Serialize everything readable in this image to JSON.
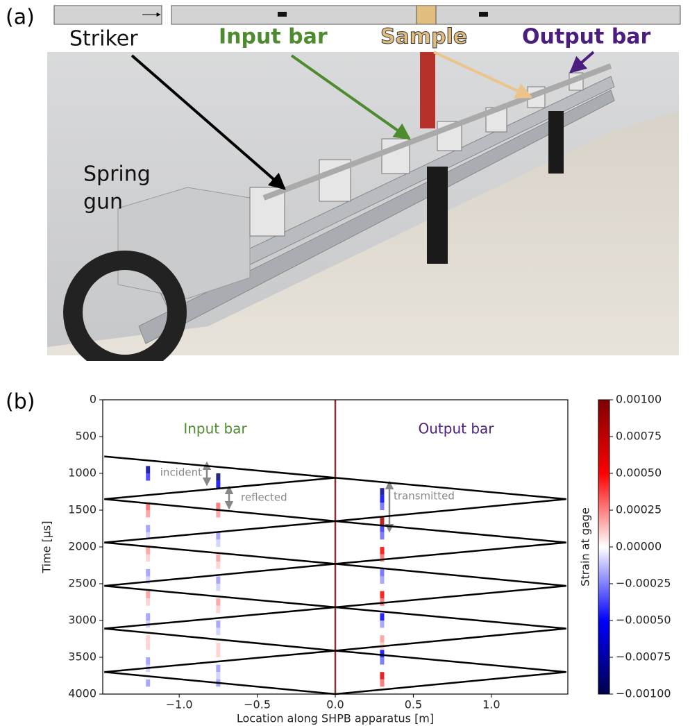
{
  "panel_a": {
    "label": "(a)",
    "striker": "Striker",
    "input_bar": "Input bar",
    "sample": "Sample",
    "output_bar": "Output bar",
    "spring_gun": [
      "Spring",
      "gun"
    ]
  },
  "chart_data": {
    "type": "wave",
    "panel_label": "(b)",
    "xlabel": "Location along SHPB apparatus  [m]",
    "ylabel": "Time [μs]",
    "xlim": [
      -1.49,
      1.49
    ],
    "ylim": [
      0,
      4000
    ],
    "y_inverted": true,
    "xticks": [
      {
        "value": -1,
        "label": "−1.0"
      },
      {
        "value": -0.5,
        "label": "−0.5"
      },
      {
        "value": 0,
        "label": "0.0"
      },
      0.5,
      {
        "value": 1,
        "label": "1.0"
      }
    ],
    "yticks": [
      0,
      500,
      1000,
      1500,
      2000,
      2500,
      3000,
      3500,
      4000
    ],
    "annotations": {
      "input_bar": "Input bar",
      "output_bar": "Output bar",
      "incident": "incident",
      "reflected": "reflected",
      "transmitted": "transmitted"
    },
    "annotation_colors": {
      "input_bar": "#4e8a2e",
      "output_bar": "#4b1d7e",
      "gage_waves": "#888888"
    },
    "interface": {
      "x": 0,
      "color": "#8b3030"
    },
    "lines": [
      {
        "color": "#000000",
        "x": [
          -1.48,
          0,
          -1.48,
          0,
          -1.48,
          0,
          -1.48,
          0,
          -1.48,
          0,
          -1.48,
          0
        ],
        "y": [
          770,
          1060,
          1350,
          1650,
          1940,
          2230,
          2530,
          2820,
          3110,
          3410,
          3700,
          4000
        ]
      },
      {
        "color": "#000000",
        "x": [
          0,
          1.48,
          0,
          1.48,
          0,
          1.48,
          0,
          1.48,
          0,
          1.48,
          0
        ],
        "y": [
          1060,
          1350,
          1650,
          1940,
          2230,
          2530,
          2820,
          3110,
          3410,
          3700,
          4000
        ]
      }
    ],
    "t": [
      800,
      900,
      1000,
      1100,
      1200,
      1300,
      1400,
      1500,
      1600,
      1700,
      1800,
      1900,
      2000,
      2100,
      2200,
      2300,
      2400,
      2500,
      2600,
      2700,
      2800,
      2900,
      3000,
      3100,
      3200,
      3300,
      3400,
      3500,
      3600,
      3700,
      3800,
      3900
    ],
    "gages": [
      {
        "x": -1.2,
        "values": [
          0,
          -0.0008,
          -0.0004,
          0,
          0,
          0,
          0.0003,
          0.0002,
          0,
          -0.0002,
          -0.0001,
          0,
          0.0002,
          0.0001,
          0,
          -0.0002,
          -0.0001,
          0,
          0.0002,
          0.0001,
          0,
          -0.0002,
          -0.0001,
          0,
          0.0001,
          0.0001,
          0,
          -0.0002,
          -0.0001,
          0,
          -0.0002,
          0
        ]
      },
      {
        "x": -0.75,
        "values": [
          0,
          0,
          -0.0009,
          -0.0005,
          0,
          0,
          0.0003,
          0.0002,
          0,
          0,
          -0.0002,
          -0.0001,
          0,
          0.0002,
          0.0001,
          0,
          -0.0002,
          -0.0001,
          0,
          0.0002,
          0.0001,
          0,
          -0.0002,
          -0.0001,
          0,
          0.0001,
          0.0001,
          0,
          -0.0002,
          -0.0001,
          -0.0002,
          0
        ]
      },
      {
        "x": 0.3,
        "values": [
          0,
          0,
          0,
          0,
          -0.0008,
          -0.0005,
          -0.0003,
          0,
          0.0008,
          -0.0004,
          -0.0003,
          0,
          0.0005,
          0.0003,
          0,
          -0.0003,
          -0.0002,
          0,
          0.0005,
          0.0003,
          0,
          -0.0005,
          -0.0002,
          0,
          0.0002,
          0.0001,
          -0.0005,
          -0.0003,
          0,
          0.0006,
          0.0003,
          0
        ]
      }
    ],
    "colorbar_label": "Strain at gage",
    "clim": [
      -0.001,
      0.001
    ],
    "colormap": [
      "#00004c",
      "#0000ff",
      "#ffffff",
      "#ff0000",
      "#7f0000"
    ],
    "cticks": [
      {
        "value": 0.001,
        "label": "0.00100"
      },
      {
        "value": 0.00075,
        "label": "0.00075"
      },
      {
        "value": 0.0005,
        "label": "0.00050"
      },
      {
        "value": 0.00025,
        "label": "0.00025"
      },
      {
        "value": 0,
        "label": "0.00000"
      },
      {
        "value": -0.00025,
        "label": "−0.00025"
      },
      {
        "value": -0.0005,
        "label": "−0.00050"
      },
      {
        "value": -0.00075,
        "label": "−0.00075"
      },
      {
        "value": -0.001,
        "label": "−0.00100"
      }
    ]
  }
}
